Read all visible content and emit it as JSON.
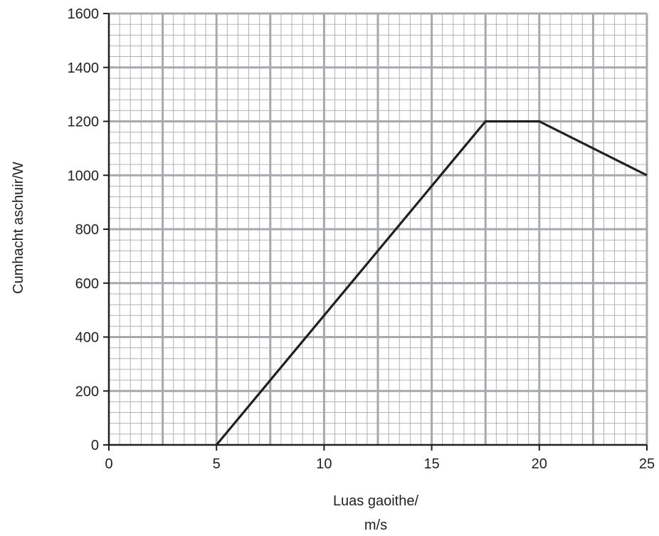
{
  "chart_data": {
    "type": "line",
    "title": "",
    "xlabel": "Luas gaoithe/\nm/s",
    "xlabel_lines": [
      "Luas gaoithe/",
      "m/s"
    ],
    "ylabel": "Cumhacht aschuir/W",
    "xlim": [
      0,
      25
    ],
    "ylim": [
      0,
      1600
    ],
    "x_ticks": [
      0,
      5,
      10,
      15,
      20,
      25
    ],
    "y_ticks": [
      0,
      200,
      400,
      600,
      800,
      1000,
      1200,
      1400,
      1600
    ],
    "x_tick_labels": [
      "0",
      "5",
      "10",
      "15",
      "20",
      "25"
    ],
    "y_tick_labels": [
      "0",
      "200",
      "400",
      "600",
      "800",
      "1000",
      "1200",
      "1400",
      "1600"
    ],
    "grid": true,
    "grid_minor_x": 0.5,
    "grid_minor_y": 40,
    "grid_major_x": 2.5,
    "grid_major_y": 200,
    "series": [
      {
        "x": [
          5,
          17.5,
          20,
          25
        ],
        "y": [
          0,
          1200,
          1200,
          1000
        ],
        "color": "#231f20"
      }
    ]
  },
  "colors": {
    "minor_grid": "#a7a9ac",
    "major_grid": "#a7a9ac",
    "axis": "#231f20",
    "line": "#231f20"
  }
}
